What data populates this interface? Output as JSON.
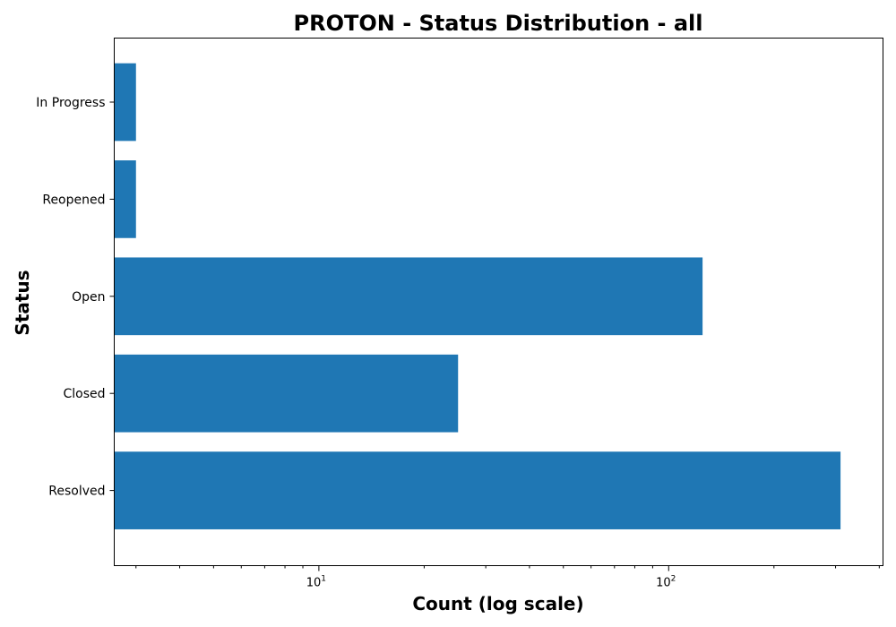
{
  "chart_data": {
    "type": "bar",
    "orientation": "horizontal",
    "title": "PROTON - Status Distribution - all",
    "xlabel": "Count (log scale)",
    "ylabel": "Status",
    "x_scale": "log",
    "xlim": [
      2.6,
      410
    ],
    "x_major_ticks": [
      {
        "base": "10",
        "exp": "1",
        "value": 10
      },
      {
        "base": "10",
        "exp": "2",
        "value": 100
      }
    ],
    "categories": [
      "In Progress",
      "Reopened",
      "Open",
      "Closed",
      "Resolved"
    ],
    "values": [
      3,
      3,
      125,
      25,
      310
    ],
    "bar_color": "#1f77b4",
    "grid": false,
    "legend": "none"
  }
}
